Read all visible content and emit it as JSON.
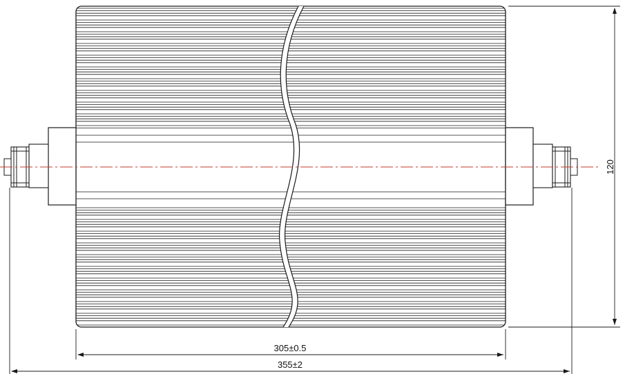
{
  "drawing": {
    "dimensions": {
      "body_length": "305±0.5",
      "overall_length": "355±2",
      "height": "120"
    },
    "colors": {
      "line": "#1a1a1a",
      "centerline": "#c0392b",
      "break_fill": "#ffffff"
    }
  }
}
